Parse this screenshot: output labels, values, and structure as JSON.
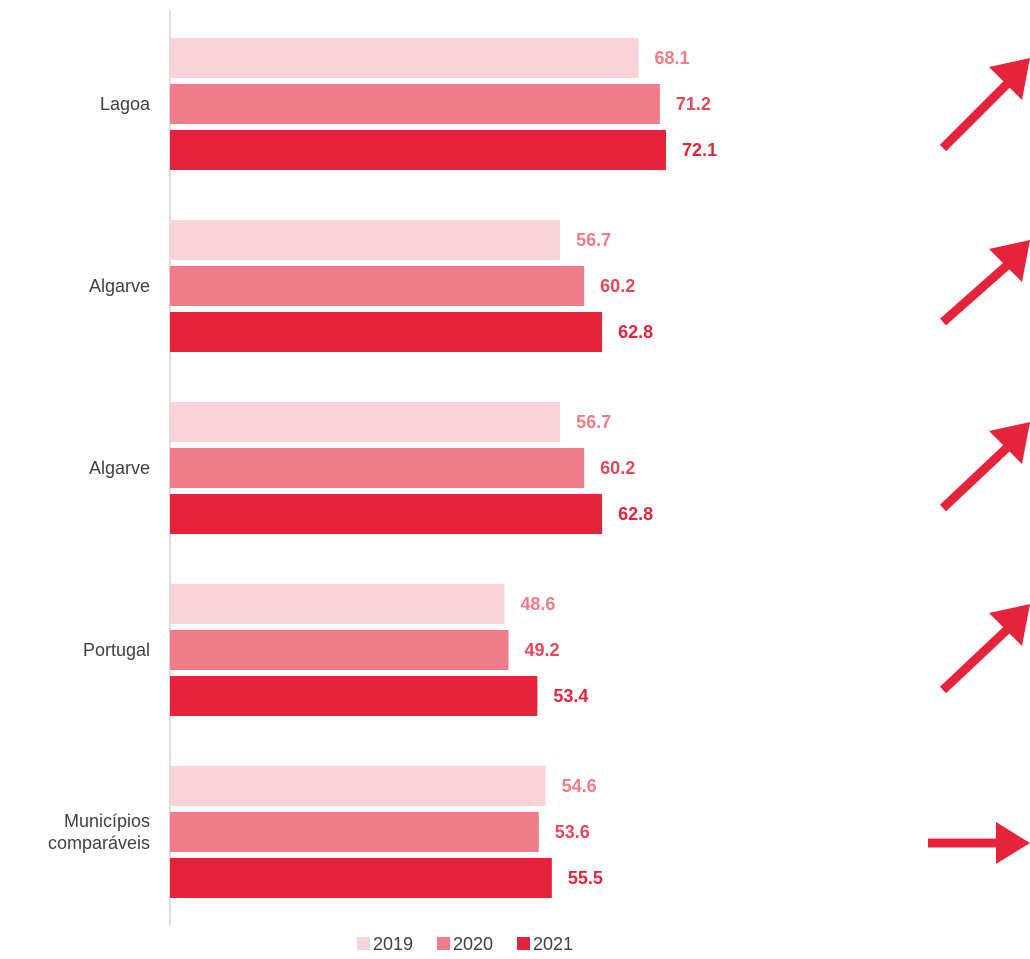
{
  "chart_data": {
    "type": "bar",
    "orientation": "horizontal",
    "categories": [
      "Lagoa",
      "Algarve",
      "Algarve",
      "Portugal",
      "Municípios comparáveis"
    ],
    "series": [
      {
        "name": "2019",
        "color": "#f9d3d8",
        "values": [
          68.1,
          56.7,
          56.7,
          48.6,
          54.6
        ]
      },
      {
        "name": "2020",
        "color": "#ef7c88",
        "values": [
          71.2,
          60.2,
          60.2,
          49.2,
          53.6
        ]
      },
      {
        "name": "2021",
        "color": "#e5233b",
        "values": [
          72.1,
          62.8,
          62.8,
          53.4,
          55.5
        ]
      }
    ],
    "xlim": [
      0,
      125
    ],
    "legend": "bottom"
  }
}
